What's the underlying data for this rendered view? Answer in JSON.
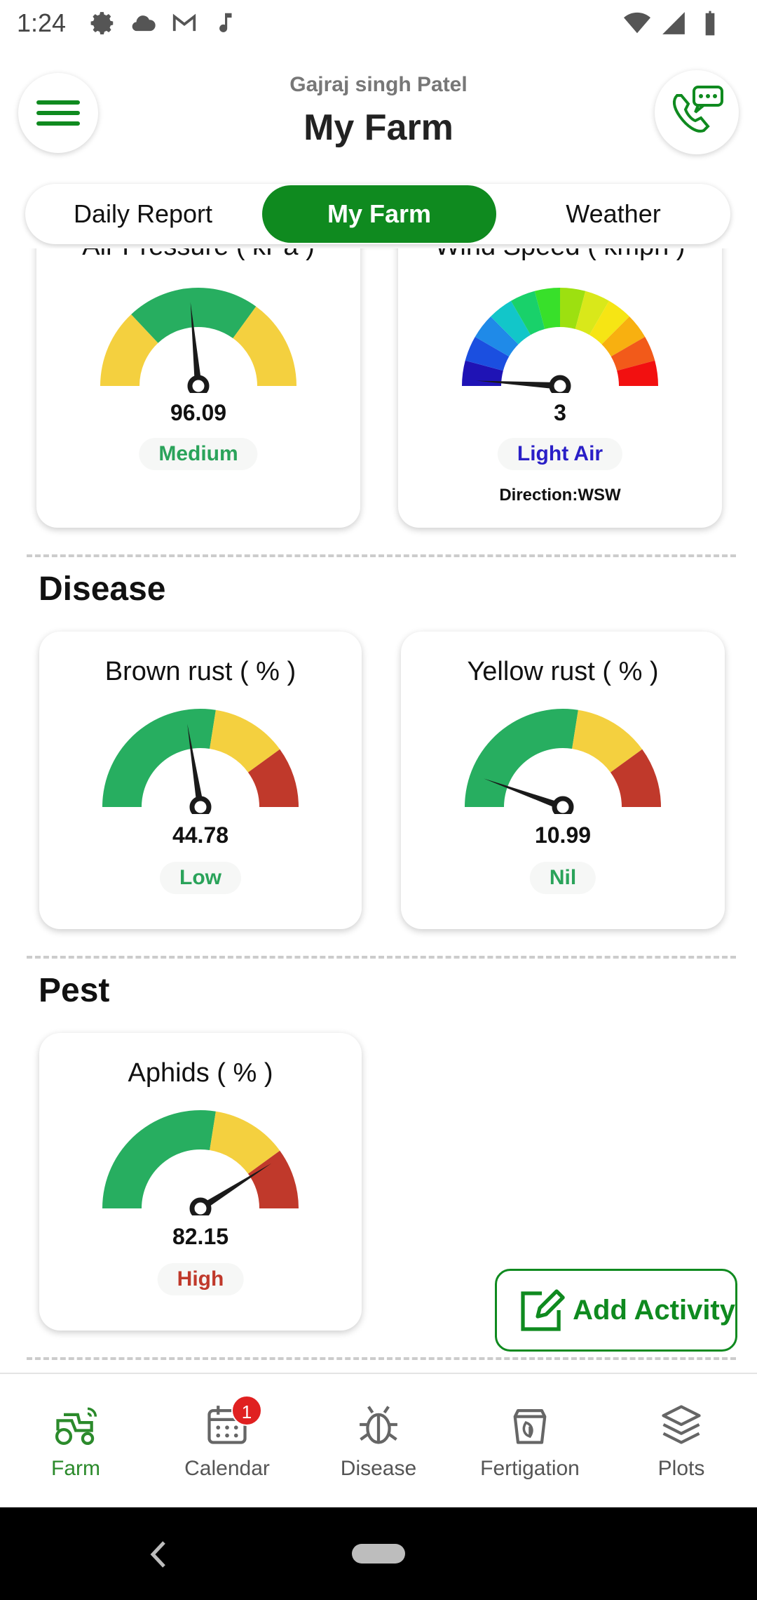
{
  "status_bar": {
    "time": "1:24",
    "left_icons": [
      "gear-icon",
      "cloud-icon",
      "gmail-icon",
      "music-note-icon"
    ],
    "right_icons": [
      "wifi-icon",
      "signal-icon",
      "battery-icon"
    ]
  },
  "header": {
    "user_name": "Gajraj singh Patel",
    "title": "My Farm",
    "menu_icon": "hamburger-menu-icon",
    "call_icon": "chat-call-icon"
  },
  "tabs": [
    {
      "label": "Daily Report",
      "active": false
    },
    {
      "label": "My Farm",
      "active": true
    },
    {
      "label": "Weather",
      "active": false
    }
  ],
  "weather_cards": [
    {
      "title": "Air Pressure ( kPa )",
      "value": "96.09",
      "status": "Medium",
      "status_color": "#2aa35a",
      "needle_fraction": 0.47
    },
    {
      "title": "Wind Speed ( kmph )",
      "value": "3",
      "status": "Light Air",
      "status_color": "#2a1fc7",
      "extra": "Direction:WSW",
      "needle_fraction": 0.02
    }
  ],
  "disease": {
    "title": "Disease",
    "cards": [
      {
        "title": "Brown rust ( % )",
        "value": "44.78",
        "status": "Low",
        "status_color": "#2aa35a",
        "needle_fraction": 0.45
      },
      {
        "title": "Yellow rust ( % )",
        "value": "10.99",
        "status": "Nil",
        "status_color": "#2aa35a",
        "needle_fraction": 0.11
      }
    ]
  },
  "pest": {
    "title": "Pest",
    "cards": [
      {
        "title": "Aphids ( % )",
        "value": "82.15",
        "status": "High",
        "status_color": "#c0392b",
        "needle_fraction": 0.82
      }
    ]
  },
  "add_activity": {
    "label": "Add Activity",
    "icon": "edit-note-icon"
  },
  "bottom_nav": [
    {
      "label": "Farm",
      "icon": "tractor-icon",
      "active": true
    },
    {
      "label": "Calendar",
      "icon": "calendar-icon",
      "active": false,
      "badge": "1"
    },
    {
      "label": "Disease",
      "icon": "bug-icon",
      "active": false
    },
    {
      "label": "Fertigation",
      "icon": "fertilizer-bag-icon",
      "active": false
    },
    {
      "label": "Plots",
      "icon": "layers-icon",
      "active": false
    }
  ],
  "colors": {
    "primary": "#0f8a1f",
    "gauge_green": "#27ae60",
    "gauge_yellow": "#f4d03f",
    "gauge_red": "#c0392b"
  }
}
